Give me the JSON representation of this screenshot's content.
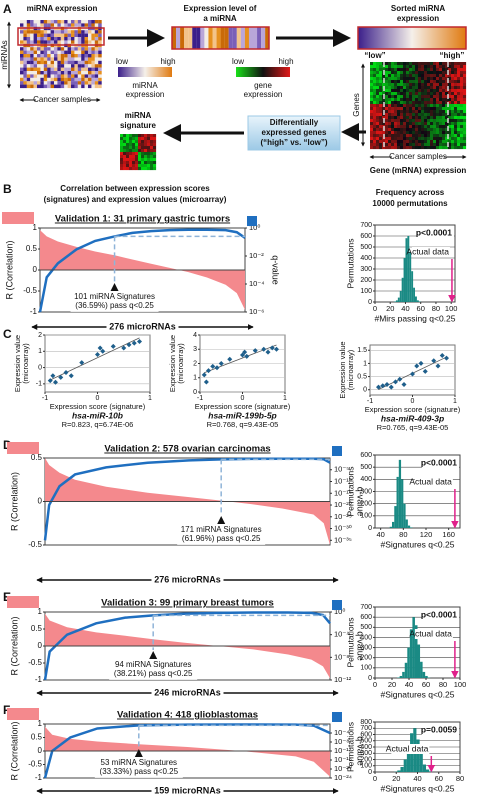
{
  "panel_labels": [
    "A",
    "B",
    "C",
    "D",
    "E",
    "F"
  ],
  "panel_a": {
    "heatmap_title": "miRNA expression",
    "rows_label": "miRNAs",
    "cols_label": "Cancer samples",
    "level_title": [
      "Expression level of",
      "a miRNA"
    ],
    "mirna_low": "low",
    "mirna_high": "high",
    "mirna_scale": [
      "miRNA",
      "expression"
    ],
    "sorted_title": [
      "Sorted miRNA",
      "expression"
    ],
    "gene_low": "low",
    "gene_high": "high",
    "gene_scale": [
      "gene",
      "expression"
    ],
    "group_low": "“low”",
    "group_high": "“high”",
    "genes_label": "Genes",
    "gene_cols_label": "Cancer samples",
    "gene_title": "Gene (mRNA) expression",
    "de_box": [
      "Differentially",
      "expressed genes",
      "(“high” vs. “low”)"
    ],
    "signature": [
      "miRNA",
      "signature"
    ]
  },
  "panel_b_header": {
    "left": [
      "Correlation between expression scores",
      "(signatures) and expression values (microarray)"
    ],
    "right": [
      "Frequency across",
      "10000 permutations"
    ]
  },
  "chart_data": [
    {
      "type": "area",
      "title": "Validation 1: 31 primary gastric tumors",
      "xlabel": "276 microRNAs",
      "annotation": [
        "101 miRNA Signatures",
        "(36.59%) pass q<0.25"
      ],
      "xlim": [
        1,
        276
      ],
      "x": [
        1,
        10,
        25,
        50,
        75,
        101,
        125,
        150,
        175,
        200,
        225,
        250,
        265,
        276
      ],
      "ylim": [
        -1,
        1
      ],
      "yticks": [
        -1,
        -0.5,
        0,
        0.5,
        1
      ],
      "y2lim": [
        1e-06,
        1
      ],
      "y2log": true,
      "y2ticks": [
        {
          "value": 1,
          "label": "10⁰"
        },
        {
          "value": 0.01,
          "label": "10⁻²"
        },
        {
          "value": 0.0001,
          "label": "10⁻⁴"
        },
        {
          "value": 1e-06,
          "label": "10⁻⁶"
        }
      ],
      "cutoff": {
        "x": 101,
        "q": 0.25
      },
      "series": [
        {
          "name": "R (Correlation)",
          "color": "#f4898d",
          "values": [
            0.95,
            0.8,
            0.68,
            0.55,
            0.44,
            0.35,
            0.25,
            0.15,
            0.05,
            -0.05,
            -0.18,
            -0.35,
            -0.55,
            -0.95
          ]
        },
        {
          "name": "q-value",
          "color": "#1f6fc0",
          "axis": "y2",
          "values": [
            1e-06,
            0.0003,
            0.003,
            0.03,
            0.12,
            0.25,
            0.45,
            0.6,
            0.7,
            0.75,
            0.75,
            0.7,
            0.5,
            0.2
          ]
        }
      ]
    },
    {
      "type": "histogram",
      "ylabel": "Permutations",
      "xlabel": "#Mirs passing q<0.25",
      "p_label": "p<0.0001",
      "actual_label": "Actual data",
      "actual": 101,
      "color": "#1a8a84",
      "bins": [
        25,
        27.5,
        30,
        32.5,
        35,
        37.5,
        40,
        42.5,
        45,
        47.5,
        50,
        52.5,
        55,
        57.5,
        60
      ],
      "values": [
        5,
        15,
        40,
        100,
        220,
        400,
        580,
        600,
        450,
        280,
        130,
        50,
        15,
        5
      ],
      "xlim": [
        0,
        105
      ],
      "xticks": [
        0,
        20,
        40,
        60,
        80,
        100
      ],
      "ylim": [
        0,
        700
      ],
      "yticks": [
        0,
        100,
        200,
        300,
        400,
        500,
        600,
        700
      ],
      "grid": true
    },
    {
      "type": "scatter",
      "name": "hsa-miR-10b",
      "stats": "R=0.823, q=6.74E-06",
      "xlabel": "Expression score (signature)",
      "ylabel": [
        "Expression value",
        "(microarray)"
      ],
      "color": "#1f5f8b",
      "x": [
        -0.9,
        -0.85,
        -0.8,
        -0.7,
        -0.6,
        -0.5,
        -0.3,
        0,
        0.05,
        0.1,
        0.3,
        0.5,
        0.6,
        0.7,
        0.8
      ],
      "values": [
        -0.8,
        -0.5,
        -0.9,
        -0.6,
        -0.3,
        -0.5,
        0.3,
        0.8,
        1.2,
        1,
        1.3,
        1.2,
        1.4,
        1.5,
        1.6
      ],
      "xlim": [
        -1,
        1
      ],
      "xticks": [
        -1,
        0,
        1
      ],
      "ylim": [
        -1.5,
        2
      ],
      "yticks": [
        -1,
        0,
        1,
        2
      ],
      "grid": true
    },
    {
      "type": "scatter",
      "name": "hsa-miR-199b-5p",
      "stats": "R=0.768, q=9.43E-05",
      "xlabel": "Expression score (signature)",
      "ylabel": [
        "Expression value",
        "(microarray)"
      ],
      "color": "#1f5f8b",
      "x": [
        -0.9,
        -0.85,
        -0.8,
        -0.7,
        -0.6,
        -0.5,
        -0.3,
        0,
        0.05,
        0.1,
        0.3,
        0.5,
        0.6,
        0.7,
        0.8
      ],
      "values": [
        1.2,
        0.7,
        1.5,
        1.8,
        1.7,
        2,
        2.3,
        2.6,
        2.8,
        2.5,
        2.9,
        3,
        2.8,
        3.1,
        3
      ],
      "xlim": [
        -1,
        1
      ],
      "xticks": [
        -1,
        0,
        1
      ],
      "ylim": [
        0,
        4
      ],
      "yticks": [
        0,
        1,
        2,
        3,
        4
      ],
      "grid": true
    },
    {
      "type": "scatter",
      "name": "hsa-miR-409-3p",
      "stats": "R=0.765, q=9.43E-05",
      "xlabel": "Expression score (signature)",
      "ylabel": [
        "Expression value",
        "(microarray)"
      ],
      "color": "#1f5f8b",
      "x": [
        -0.8,
        -0.7,
        -0.6,
        -0.5,
        -0.4,
        -0.3,
        -0.2,
        0,
        0.1,
        0.2,
        0.3,
        0.5,
        0.6,
        0.7,
        0.8
      ],
      "values": [
        0.1,
        0.15,
        0.2,
        0.1,
        0.3,
        0.4,
        0.2,
        0.6,
        0.9,
        1,
        0.7,
        1.1,
        0.9,
        1.3,
        1.2
      ],
      "xlim": [
        -1,
        1
      ],
      "xticks": [
        -1,
        0,
        1
      ],
      "ylim": [
        -0.2,
        1.7
      ],
      "yticks": [
        0,
        0.5,
        1,
        1.5
      ],
      "grid": true
    },
    {
      "type": "area",
      "title": "Validation 2: 578 ovarian carcinomas",
      "xlabel": "276 microRNAs",
      "annotation": [
        "171 miRNA Signatures",
        "(61.96%) pass q<0.25"
      ],
      "xlim": [
        1,
        276
      ],
      "x": [
        1,
        5,
        15,
        30,
        60,
        100,
        140,
        171,
        200,
        230,
        260,
        270,
        276
      ],
      "ylim": [
        -0.5,
        0.5
      ],
      "yticks": [
        -0.5,
        0,
        0.5
      ],
      "y2lim": [
        1e-37,
        1
      ],
      "y2log": true,
      "y2ticks": [
        {
          "value": 1e-05,
          "label": "10⁻⁵"
        },
        {
          "value": 1e-10,
          "label": "10⁻¹⁰"
        },
        {
          "value": 1e-15,
          "label": "10⁻¹⁵"
        },
        {
          "value": 1e-20,
          "label": "10⁻²⁰"
        },
        {
          "value": 1e-25,
          "label": "10⁻²⁵"
        },
        {
          "value": 1e-30,
          "label": "10⁻³⁰"
        },
        {
          "value": 1e-35,
          "label": "10⁻³⁵"
        }
      ],
      "cutoff": {
        "x": 171,
        "q": 0.25
      },
      "series": [
        {
          "name": "R (Correlation)",
          "color": "#f4898d",
          "values": [
            0.5,
            0.42,
            0.33,
            0.25,
            0.17,
            0.1,
            0.05,
            0.01,
            -0.03,
            -0.08,
            -0.15,
            -0.25,
            -0.5
          ]
        },
        {
          "name": "q-value",
          "color": "#1f6fc0",
          "axis": "y2",
          "values": [
            1e-35,
            1e-20,
            1e-12,
            1e-07,
            0.0001,
            0.01,
            0.1,
            0.25,
            0.4,
            0.5,
            0.5,
            0.3,
            0.01
          ]
        }
      ]
    },
    {
      "type": "histogram",
      "ylabel": "Permutations",
      "xlabel": "#Signatures q<0.25",
      "p_label": "p<0.0001",
      "actual_label": "Actual data",
      "actual": 171,
      "color": "#1a8a84",
      "bins": [
        56,
        60,
        64,
        68,
        72,
        76,
        80,
        84,
        88,
        92,
        96
      ],
      "values": [
        10,
        50,
        180,
        420,
        560,
        400,
        200,
        70,
        20,
        5
      ],
      "xlim": [
        30,
        180
      ],
      "xticks": [
        40,
        80,
        120,
        160
      ],
      "ylim": [
        0,
        600
      ],
      "yticks": [
        0,
        100,
        200,
        300,
        400,
        500,
        600
      ],
      "grid": true
    },
    {
      "type": "area",
      "title": "Validation 3: 99 primary breast tumors",
      "xlabel": "246 microRNAs",
      "annotation": [
        "94 miRNA Signatures",
        "(38.21%) pass q<0.25"
      ],
      "xlim": [
        1,
        246
      ],
      "x": [
        1,
        5,
        20,
        45,
        70,
        94,
        120,
        150,
        180,
        210,
        230,
        240,
        246
      ],
      "ylim": [
        -1,
        1
      ],
      "yticks": [
        -1,
        -0.5,
        0,
        0.5,
        1
      ],
      "y2lim": [
        1e-12,
        1
      ],
      "y2log": true,
      "y2ticks": [
        {
          "value": 1,
          "label": "10⁰"
        },
        {
          "value": 0.0001,
          "label": "10⁻⁴"
        },
        {
          "value": 1e-08,
          "label": "10⁻⁸"
        },
        {
          "value": 1e-12,
          "label": "10⁻¹²"
        }
      ],
      "cutoff": {
        "x": 94,
        "q": 0.25
      },
      "series": [
        {
          "name": "R (Correlation)",
          "color": "#f4898d",
          "values": [
            0.95,
            0.75,
            0.55,
            0.4,
            0.3,
            0.2,
            0.1,
            0,
            -0.1,
            -0.25,
            -0.4,
            -0.6,
            -0.95
          ]
        },
        {
          "name": "q-value",
          "color": "#1f6fc0",
          "axis": "y2",
          "values": [
            1e-12,
            1e-07,
            0.0001,
            0.01,
            0.1,
            0.25,
            0.5,
            0.7,
            0.8,
            0.8,
            0.7,
            0.3,
            0.01
          ]
        }
      ]
    },
    {
      "type": "histogram",
      "ylabel": "Permutations",
      "xlabel": "#Signatures q<0.25",
      "p_label": "p<0.0001",
      "actual_label": "Actual data",
      "actual": 94,
      "color": "#1a8a84",
      "bins": [
        26,
        29,
        32,
        35,
        38,
        41,
        44,
        47,
        50,
        53,
        56,
        59,
        62,
        65
      ],
      "values": [
        5,
        20,
        60,
        150,
        300,
        480,
        600,
        520,
        330,
        160,
        60,
        20,
        5
      ],
      "xlim": [
        0,
        100
      ],
      "xticks": [
        0,
        20,
        40,
        60,
        80,
        100
      ],
      "ylim": [
        0,
        700
      ],
      "yticks": [
        0,
        100,
        200,
        300,
        400,
        500,
        600,
        700
      ],
      "grid": true
    },
    {
      "type": "area",
      "title": "Validation 4: 418 glioblastomas",
      "xlabel": "159 microRNAs",
      "annotation": [
        "53 miRNA Signatures",
        "(33.33%) pass q<0.25"
      ],
      "xlim": [
        1,
        159
      ],
      "x": [
        1,
        5,
        15,
        30,
        53,
        80,
        110,
        140,
        150,
        159
      ],
      "ylim": [
        -1,
        1
      ],
      "yticks": [
        -1,
        -0.5,
        0,
        0.5,
        1
      ],
      "y2lim": [
        1e-24,
        1
      ],
      "y2log": true,
      "y2ticks": [
        {
          "value": 0.0001,
          "label": "10⁻⁴"
        },
        {
          "value": 1e-08,
          "label": "10⁻⁸"
        },
        {
          "value": 1e-12,
          "label": "10⁻¹²"
        },
        {
          "value": 1e-16,
          "label": "10⁻¹⁶"
        },
        {
          "value": 1e-20,
          "label": "10⁻²⁰"
        },
        {
          "value": 1e-24,
          "label": "10⁻²⁴"
        }
      ],
      "cutoff": {
        "x": 53,
        "q": 0.25
      },
      "series": [
        {
          "name": "R (Correlation)",
          "color": "#f4898d",
          "values": [
            0.9,
            0.6,
            0.45,
            0.35,
            0.25,
            0.15,
            0,
            -0.2,
            -0.4,
            -0.95
          ]
        },
        {
          "name": "q-value",
          "color": "#1f6fc0",
          "axis": "y2",
          "values": [
            1e-24,
            1e-12,
            1e-06,
            0.01,
            0.25,
            0.5,
            0.6,
            0.5,
            0.2,
            0.0001
          ]
        }
      ]
    },
    {
      "type": "histogram",
      "ylabel": "Permutations",
      "xlabel": "#Signatures q<0.25",
      "p_label": "p=0.0059",
      "actual_label": "Actual data",
      "actual": 53,
      "color": "#1a8a84",
      "bins": [
        18,
        21,
        24,
        27,
        30,
        33,
        36,
        39,
        42,
        45,
        48,
        51,
        54
      ],
      "values": [
        5,
        25,
        80,
        200,
        400,
        620,
        700,
        520,
        300,
        120,
        40,
        10
      ],
      "xlim": [
        0,
        80
      ],
      "xticks": [
        0,
        20,
        40,
        60,
        80
      ],
      "ylim": [
        0,
        800
      ],
      "yticks": [
        0,
        100,
        200,
        300,
        400,
        500,
        600,
        700,
        800
      ],
      "grid": true
    }
  ]
}
